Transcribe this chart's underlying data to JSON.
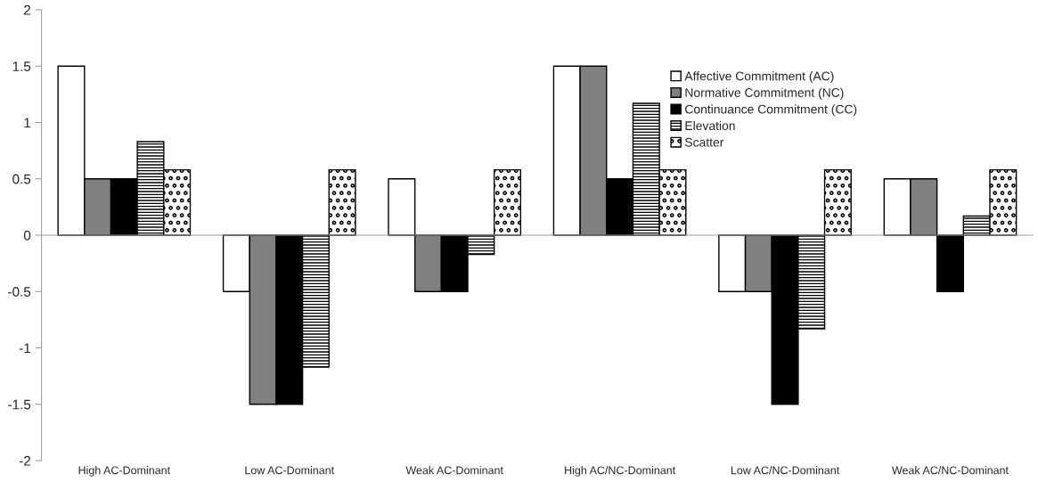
{
  "chart_data": {
    "type": "bar",
    "categories": [
      "High AC-Dominant",
      "Low AC-Dominant",
      "Weak AC-Dominant",
      "High AC/NC-Dominant",
      "Low AC/NC-Dominant",
      "Weak AC/NC-Dominant"
    ],
    "series": [
      {
        "name": "Affective Commitment (AC)",
        "color": "#ffffff",
        "values": [
          1.5,
          -0.5,
          0.5,
          1.5,
          -0.5,
          0.5
        ]
      },
      {
        "name": "Normative Commitment (NC)",
        "color": "#808080",
        "values": [
          0.5,
          -1.5,
          -0.5,
          1.5,
          -0.5,
          0.5
        ]
      },
      {
        "name": "Continuance Commitment (CC)",
        "color": "#000000",
        "values": [
          0.5,
          -1.5,
          -0.5,
          0.5,
          -1.5,
          -0.5
        ]
      },
      {
        "name": "Elevation",
        "color": "#000000",
        "values": [
          0.83,
          -1.17,
          -0.17,
          1.17,
          -0.83,
          0.17
        ]
      },
      {
        "name": "Scatter",
        "color": "#000000",
        "values": [
          0.58,
          0.58,
          0.58,
          0.58,
          0.58,
          0.58
        ]
      }
    ],
    "ylim": [
      -2,
      2
    ],
    "yticks": [
      -2,
      -1.5,
      -1,
      -0.5,
      0,
      0.5,
      1,
      1.5,
      2
    ],
    "legend": "top right"
  }
}
